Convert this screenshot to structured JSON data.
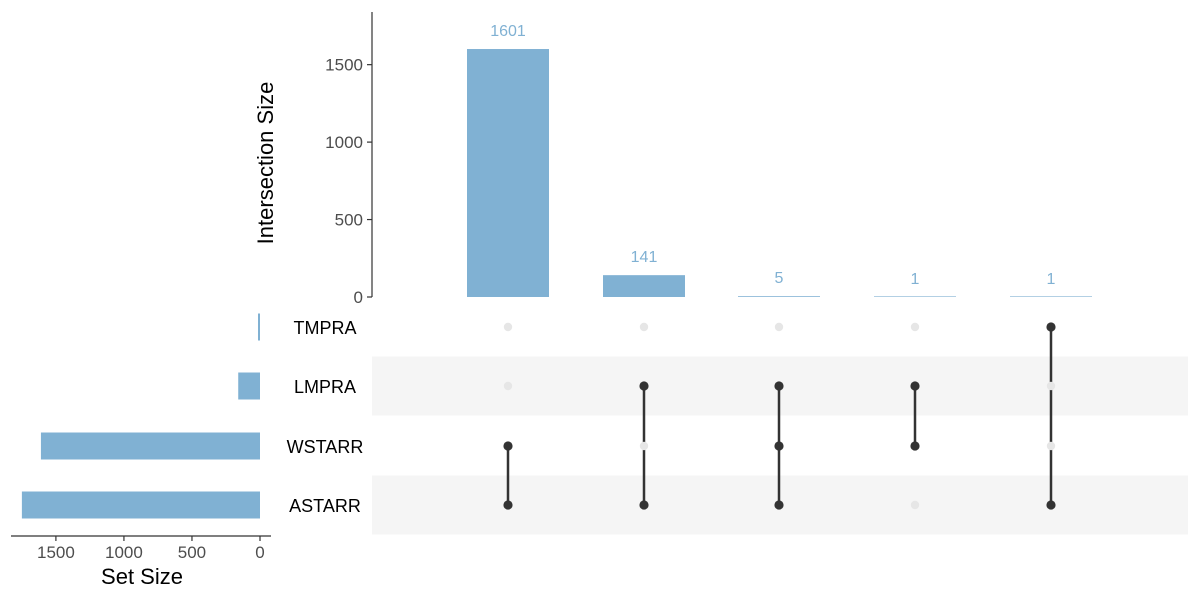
{
  "chart_data": {
    "type": "upset",
    "colors": {
      "bar": "#80b1d3",
      "bar_label": "#80b1d3",
      "dot_active": "#333333",
      "dot_inactive": "#e6e6e6",
      "connector": "#333333",
      "row_stripe": "#f5f5f5",
      "axis_text": "#4d4d4d",
      "title_text": "#000000"
    },
    "intersection_axis": {
      "label": "Intersection Size",
      "ticks": [
        "0",
        "500",
        "1000",
        "1500"
      ],
      "tick_values": [
        0,
        500,
        1000,
        1500
      ],
      "ylim": [
        0,
        1840
      ]
    },
    "set_size_axis": {
      "label": "Set Size",
      "ticks": [
        "1500",
        "1000",
        "500",
        "0"
      ],
      "tick_values": [
        1500,
        1000,
        500,
        0
      ],
      "xlim": [
        0,
        1830
      ]
    },
    "sets": [
      {
        "name": "TMPRA",
        "size": 12
      },
      {
        "name": "LMPRA",
        "size": 160
      },
      {
        "name": "WSTARR",
        "size": 1610
      },
      {
        "name": "ASTARR",
        "size": 1750
      }
    ],
    "intersections": [
      {
        "value": 1601,
        "label": "1601",
        "members": [
          "WSTARR",
          "ASTARR"
        ]
      },
      {
        "value": 141,
        "label": "141",
        "members": [
          "LMPRA",
          "ASTARR"
        ]
      },
      {
        "value": 5,
        "label": "5",
        "members": [
          "LMPRA",
          "WSTARR",
          "ASTARR"
        ]
      },
      {
        "value": 1,
        "label": "1",
        "members": [
          "LMPRA",
          "WSTARR"
        ]
      },
      {
        "value": 1,
        "label": "1",
        "members": [
          "TMPRA",
          "ASTARR"
        ]
      }
    ]
  }
}
